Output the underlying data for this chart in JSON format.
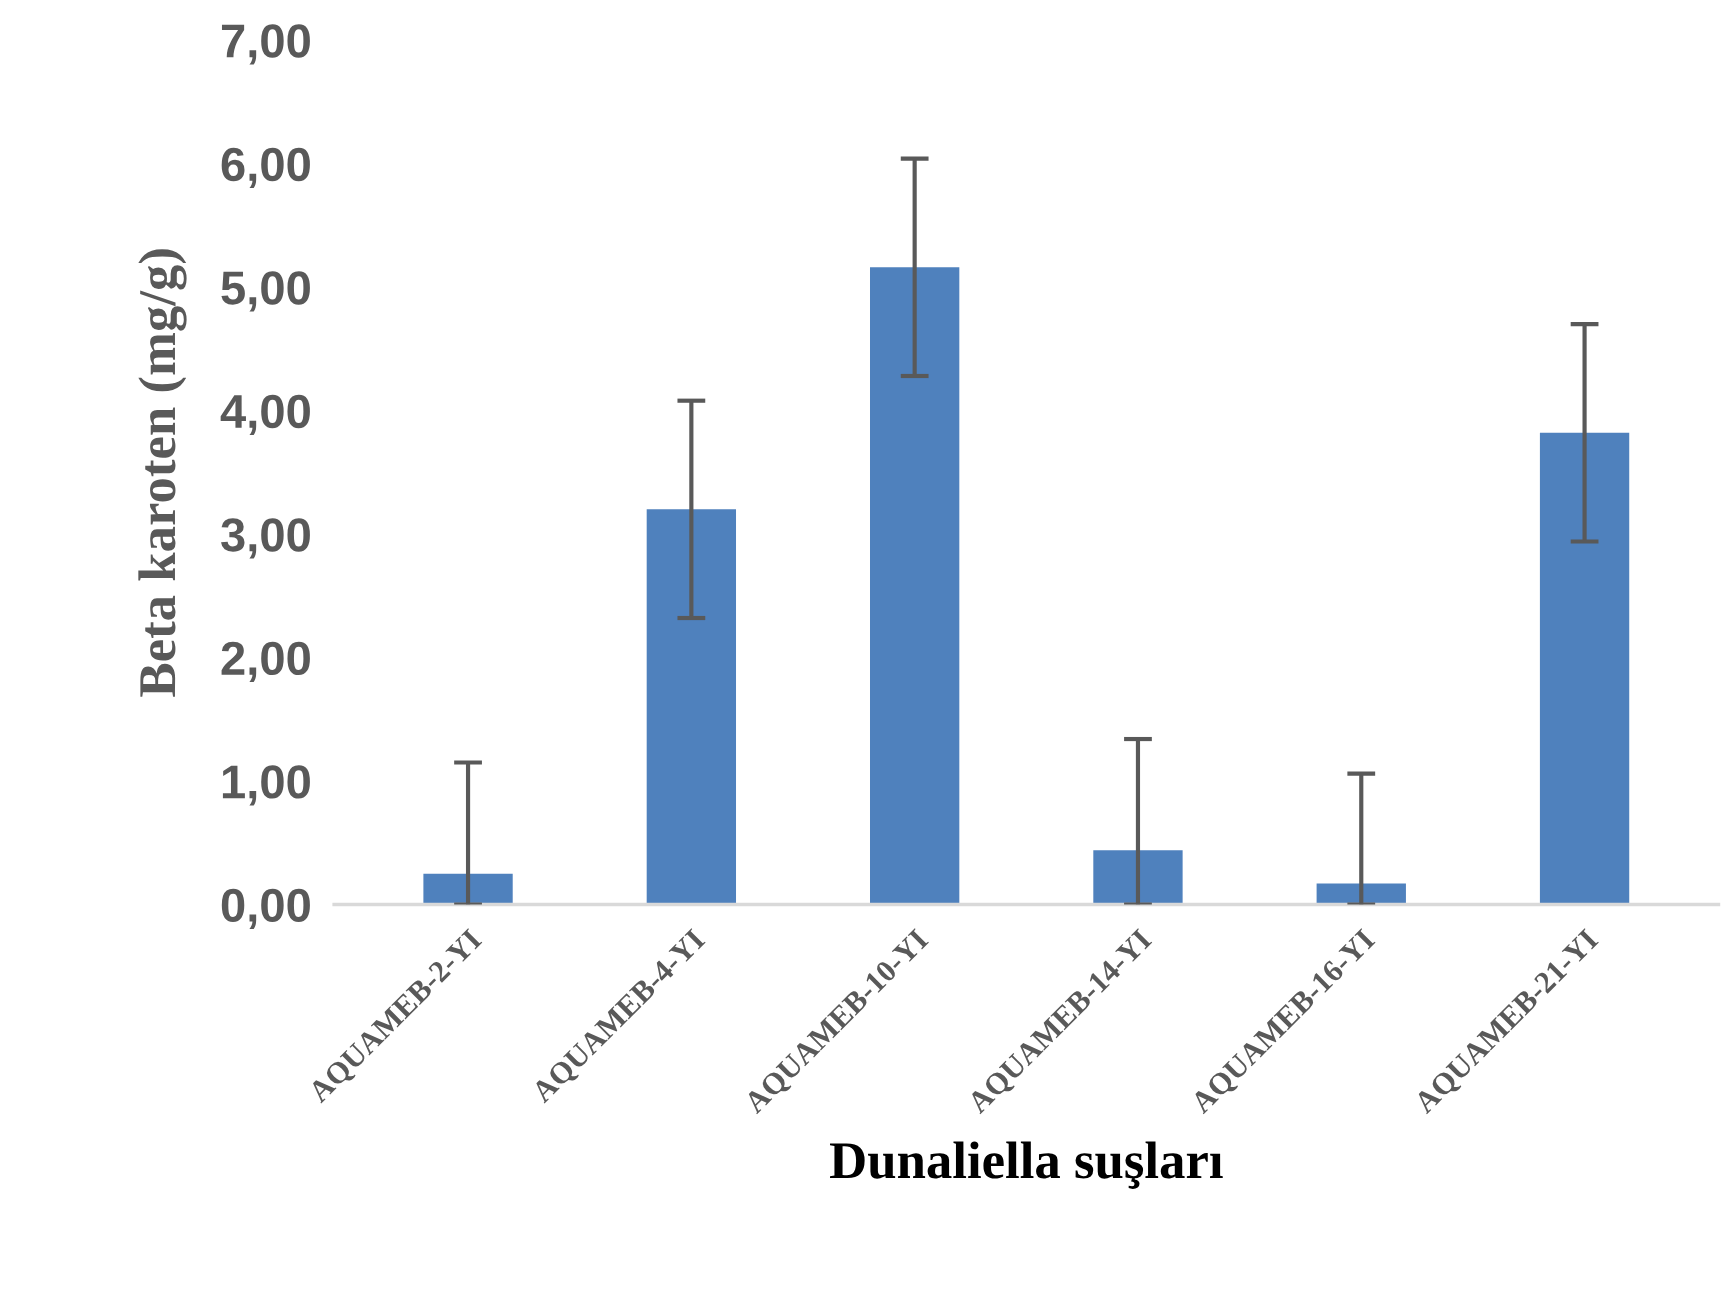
{
  "chart_data": {
    "type": "bar",
    "categories": [
      "AQUAMEB-2-YI",
      "AQUAMEB-4-YI",
      "AQUAMEB-10-YI",
      "AQUAMEB-14-YI",
      "AQUAMEB-16-YI",
      "AQUAMEB-21-YI"
    ],
    "values": [
      0.25,
      3.2,
      5.16,
      0.44,
      0.17,
      3.82
    ],
    "errors": [
      [
        0,
        1.15
      ],
      0.88,
      0.88,
      [
        0,
        1.34
      ],
      [
        0,
        1.06
      ],
      0.88
    ],
    "color": "#4f81bd",
    "xlabel": "Dunaliella suşları",
    "ylabel": "Beta karoten (mg/g)",
    "ylim": [
      0,
      7
    ],
    "yticks": [
      {
        "value": 0,
        "label": "0,00"
      },
      {
        "value": 1,
        "label": "1,00"
      },
      {
        "value": 2,
        "label": "2,00"
      },
      {
        "value": 3,
        "label": "3,00"
      },
      {
        "value": 4,
        "label": "4,00"
      },
      {
        "value": 5,
        "label": "5,00"
      },
      {
        "value": 6,
        "label": "6,00"
      },
      {
        "value": 7,
        "label": "7,00"
      }
    ],
    "grid": false,
    "legend": false
  }
}
